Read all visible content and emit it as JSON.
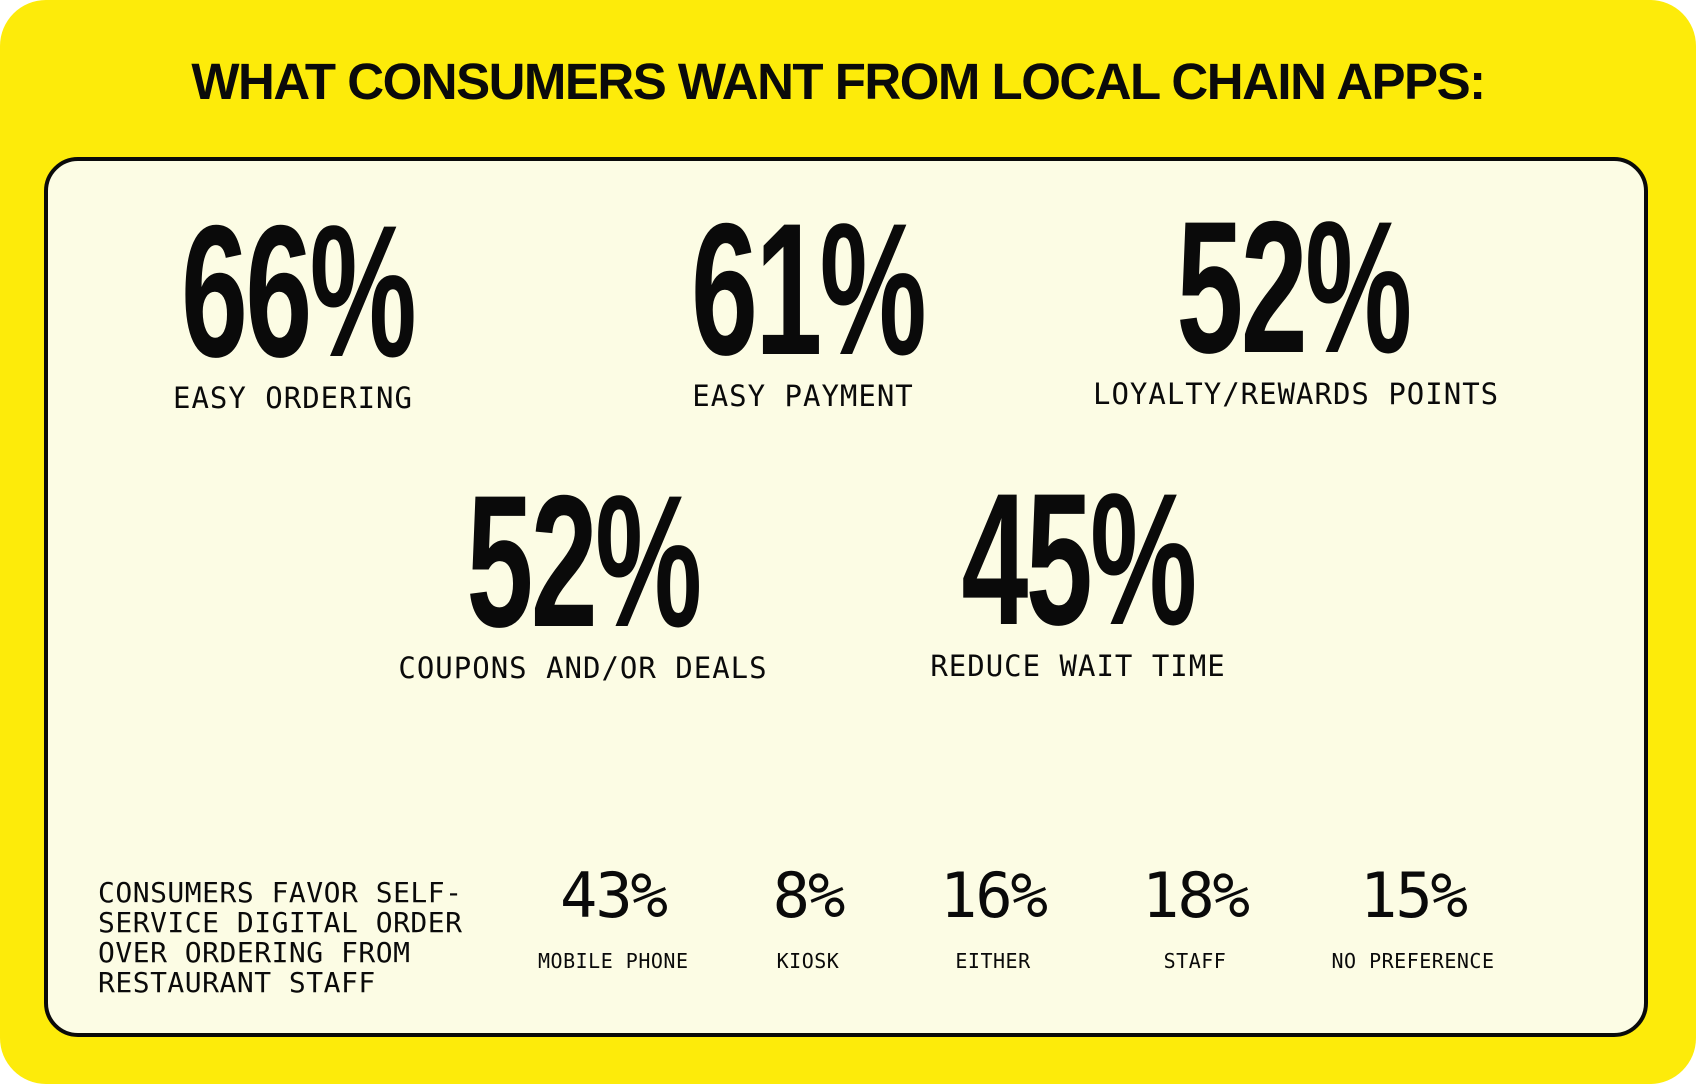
{
  "headline": "WHAT CONSUMERS WANT FROM LOCAL CHAIN APPS:",
  "colors": {
    "background": "#FDEB0A",
    "card": "#FCFCE4",
    "text": "#0a0a0a"
  },
  "stats": [
    {
      "value": "66%",
      "label": "EASY ORDERING"
    },
    {
      "value": "61%",
      "label": "EASY PAYMENT"
    },
    {
      "value": "52%",
      "label": "LOYALTY/REWARDS POINTS"
    },
    {
      "value": "52%",
      "label": "COUPONS AND/OR DEALS"
    },
    {
      "value": "45%",
      "label": "REDUCE WAIT TIME"
    }
  ],
  "preference": {
    "title_lines": [
      "CONSUMERS FAVOR SELF-",
      "SERVICE DIGITAL ORDER",
      "OVER ORDERING FROM",
      "RESTAURANT STAFF"
    ],
    "items": [
      {
        "value": "43%",
        "label": "MOBILE PHONE"
      },
      {
        "value": "8%",
        "label": "KIOSK"
      },
      {
        "value": "16%",
        "label": "EITHER"
      },
      {
        "value": "18%",
        "label": "STAFF"
      },
      {
        "value": "15%",
        "label": "NO PREFERENCE"
      }
    ]
  }
}
